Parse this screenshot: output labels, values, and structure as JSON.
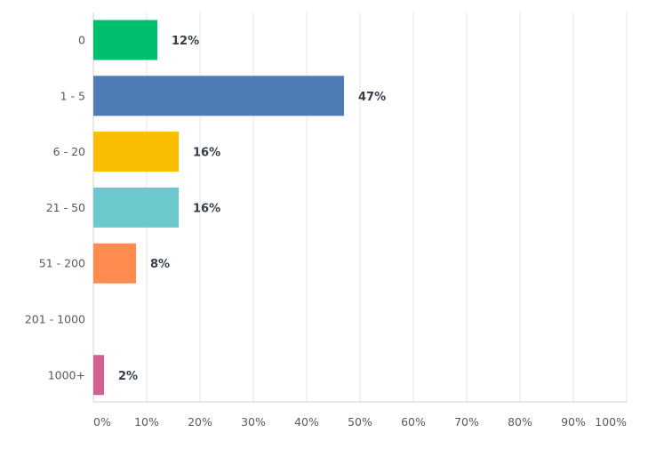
{
  "chart_data": {
    "type": "bar",
    "orientation": "horizontal",
    "categories": [
      "0",
      "1 - 5",
      "6 - 20",
      "21 - 50",
      "51 - 200",
      "201 - 1000",
      "1000+"
    ],
    "values": [
      12,
      47,
      16,
      16,
      8,
      0,
      2
    ],
    "value_labels": [
      "12%",
      "47%",
      "16%",
      "16%",
      "8%",
      "",
      "2%"
    ],
    "colors": [
      "#00bf6f",
      "#507cb6",
      "#f9be00",
      "#6bc8cd",
      "#ff8b4f",
      "#7f7fff",
      "#d25f90"
    ],
    "xlim": [
      0,
      100
    ],
    "xticks": [
      0,
      10,
      20,
      30,
      40,
      50,
      60,
      70,
      80,
      90,
      100
    ],
    "xtick_labels": [
      "0%",
      "10%",
      "20%",
      "30%",
      "40%",
      "50%",
      "60%",
      "70%",
      "80%",
      "90%",
      "100%"
    ],
    "grid": true,
    "title": "",
    "xlabel": "",
    "ylabel": ""
  }
}
